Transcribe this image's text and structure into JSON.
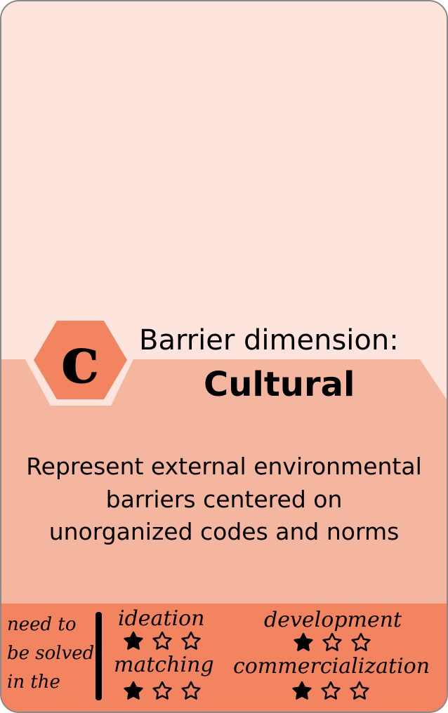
{
  "colors": {
    "top_bg": "#fde4dc",
    "mid_bg": "#f5b6a0",
    "accent": "#f28560",
    "border": "#8a8a8a",
    "ink": "#000000"
  },
  "badge": {
    "letter": "c",
    "icon": "hexagon-letter-badge"
  },
  "heading": {
    "label": "Barrier dimension:",
    "value": "Cultural"
  },
  "description": {
    "lines": [
      "Represent external environmental",
      "barriers centered on",
      "unorganized codes and norms"
    ]
  },
  "footer": {
    "side_label": [
      "need to",
      "be solved",
      "in the"
    ],
    "stages": [
      {
        "name": "ideation",
        "rating": 1,
        "max": 3
      },
      {
        "name": "development",
        "rating": 1,
        "max": 3
      },
      {
        "name": "matching",
        "rating": 1,
        "max": 3
      },
      {
        "name": "commercialization",
        "rating": 1,
        "max": 3
      }
    ]
  }
}
